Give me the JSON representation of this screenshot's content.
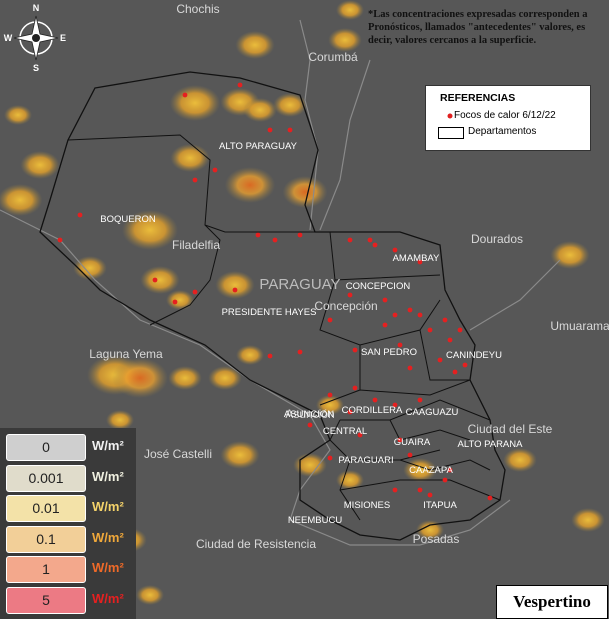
{
  "note": "*Las concentraciones expresadas corresponden a Pronósticos, llamados \"antecedentes\" valores, es decir, valores cercanos a la superficie.",
  "compass": {
    "north": "N",
    "south": "S",
    "east": "E",
    "west": "W"
  },
  "legend": {
    "title": "REFERENCIAS",
    "items": [
      "Focos de calor 6/12/22",
      "Departamentos"
    ]
  },
  "country": "PARAGUAY",
  "cities": [
    "Chochis",
    "Corumbá",
    "Filadelfia",
    "Dourados",
    "Umuarama",
    "Laguna Yema",
    "Concepción",
    "Ciudad del Este",
    "José Castelli",
    "Ciudad de Resistencia",
    "Posadas",
    "Asunción"
  ],
  "departments": [
    "ALTO PARAGUAY",
    "BOQUERON",
    "AMAMBAY",
    "CONCEPCION",
    "PRESIDENTE HAYES",
    "SAN PEDRO",
    "CANINDEYU",
    "ASUNCION",
    "CORDILLERA",
    "CAAGUAZU",
    "CENTRAL",
    "GUAIRA",
    "ALTO PARANA",
    "PARAGUARI",
    "CAAZAPA",
    "MISIONES",
    "ITAPUA",
    "NEEMBUCU"
  ],
  "scale": {
    "unit": "W/m²",
    "levels": [
      0,
      0.001,
      0.01,
      0.1,
      1,
      5
    ]
  },
  "period": "Vespertino"
}
